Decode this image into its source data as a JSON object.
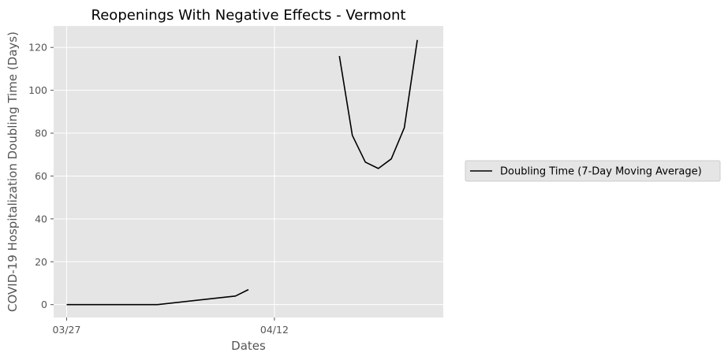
{
  "chart_data": {
    "type": "line",
    "title": "Reopenings With Negative Effects - Vermont",
    "xlabel": "Dates",
    "ylabel": "COVID-19 Hospitalization Doubling Time (Days)",
    "x_ticks": [
      "03/27",
      "04/12"
    ],
    "y_ticks": [
      0,
      20,
      40,
      60,
      80,
      100,
      120
    ],
    "xlim": [
      "03/26",
      "04/25"
    ],
    "ylim": [
      -6,
      130
    ],
    "grid": true,
    "legend_position": "right",
    "series": [
      {
        "name": "Doubling Time (7-Day Moving Average)",
        "color": "#000000",
        "segments": [
          [
            {
              "x": "03/27",
              "y": 0
            },
            {
              "x": "04/03",
              "y": 0
            },
            {
              "x": "04/09",
              "y": 4
            },
            {
              "x": "04/10",
              "y": 7
            }
          ],
          [
            {
              "x": "04/17",
              "y": 116
            },
            {
              "x": "04/18",
              "y": 79
            },
            {
              "x": "04/19",
              "y": 66.5
            },
            {
              "x": "04/20",
              "y": 63.5
            },
            {
              "x": "04/21",
              "y": 68
            },
            {
              "x": "04/22",
              "y": 82.5
            },
            {
              "x": "04/23",
              "y": 123.5
            }
          ]
        ]
      }
    ]
  }
}
